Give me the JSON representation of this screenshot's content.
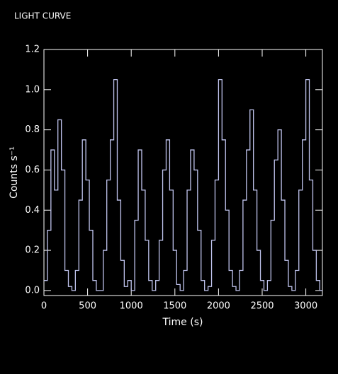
{
  "chart_data": {
    "type": "step",
    "title": "LIGHT CURVE",
    "xlabel": "Time (s)",
    "ylabel": "Counts s⁻¹",
    "color": "#c0c4ee",
    "x": [
      0,
      40,
      80,
      120,
      160,
      200,
      240,
      280,
      320,
      360,
      400,
      440,
      480,
      520,
      560,
      600,
      640,
      680,
      720,
      760,
      800,
      840,
      880,
      920,
      960,
      1000,
      1040,
      1080,
      1120,
      1160,
      1200,
      1240,
      1280,
      1320,
      1360,
      1400,
      1440,
      1480,
      1520,
      1560,
      1600,
      1640,
      1680,
      1720,
      1760,
      1800,
      1840,
      1880,
      1920,
      1960,
      2000,
      2040,
      2080,
      2120,
      2160,
      2200,
      2240,
      2280,
      2320,
      2360,
      2400,
      2440,
      2480,
      2520,
      2560,
      2600,
      2640,
      2680,
      2720,
      2760,
      2800,
      2840,
      2880,
      2920,
      2960,
      3000,
      3040,
      3080,
      3120,
      3160
    ],
    "values": [
      0.05,
      0.3,
      0.7,
      0.5,
      0.85,
      0.6,
      0.1,
      0.02,
      0.0,
      0.1,
      0.45,
      0.75,
      0.55,
      0.3,
      0.05,
      0.0,
      0.0,
      0.2,
      0.55,
      0.75,
      1.05,
      0.45,
      0.15,
      0.02,
      0.05,
      0.0,
      0.35,
      0.7,
      0.5,
      0.25,
      0.05,
      0.0,
      0.05,
      0.25,
      0.6,
      0.75,
      0.5,
      0.2,
      0.03,
      0.0,
      0.1,
      0.5,
      0.7,
      0.6,
      0.3,
      0.05,
      0.0,
      0.02,
      0.25,
      0.55,
      1.05,
      0.75,
      0.4,
      0.1,
      0.02,
      0.0,
      0.1,
      0.45,
      0.7,
      0.9,
      0.5,
      0.2,
      0.05,
      0.0,
      0.05,
      0.35,
      0.65,
      0.8,
      0.45,
      0.15,
      0.02,
      0.0,
      0.1,
      0.5,
      0.75,
      1.05,
      0.55,
      0.2,
      0.05,
      0.0
    ],
    "xlim": [
      0,
      3190
    ],
    "ylim": [
      -0.025,
      1.2
    ],
    "xticks": [
      0,
      500,
      1000,
      1500,
      2000,
      2500,
      3000
    ],
    "yticks": [
      {
        "value": 0,
        "label": "0.0"
      },
      0.2,
      0.4,
      0.6,
      0.8,
      {
        "value": 1,
        "label": "1.0"
      },
      1.2
    ]
  }
}
